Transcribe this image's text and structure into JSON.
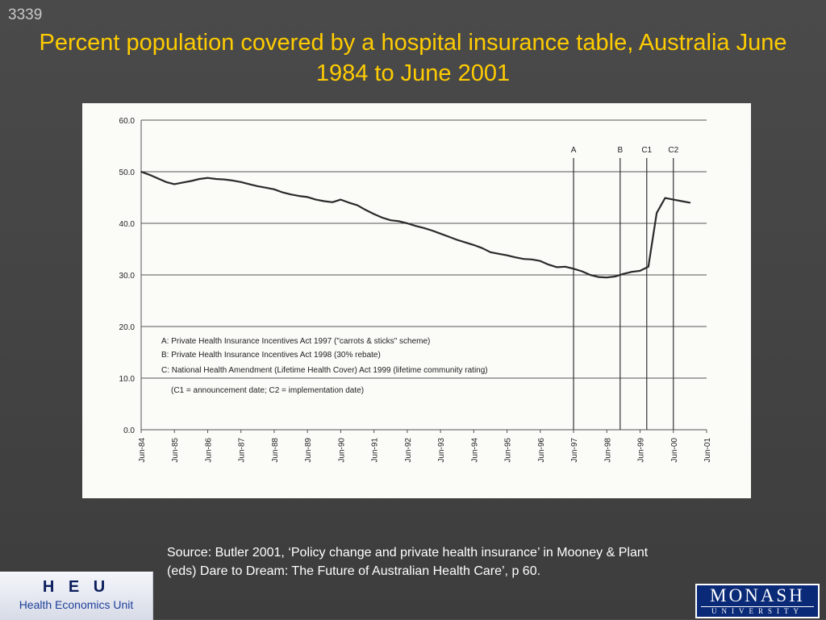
{
  "slide": {
    "number": "3339",
    "title": "Percent population covered by a hospital insurance table, Australia June 1984 to June 2001",
    "source": "Source: Butler 2001, ‘Policy change and private health insurance’ in Mooney & Plant (eds) Dare to Dream: The Future of Australian Health Care’, p 60.",
    "heu": {
      "abbr": "H E U",
      "full": "Health Economics Unit"
    },
    "monash": {
      "name": "MONASH",
      "sub": "UNIVERSITY"
    }
  },
  "chart_data": {
    "type": "line",
    "title": "",
    "xlabel": "",
    "ylabel": "",
    "ylim": [
      0,
      60
    ],
    "yticks": [
      "0.0",
      "10.0",
      "20.0",
      "30.0",
      "40.0",
      "50.0",
      "60.0"
    ],
    "grid": true,
    "categories": [
      "Jun-84",
      "Jun-85",
      "Jun-86",
      "Jun-87",
      "Jun-88",
      "Jun-89",
      "Jun-90",
      "Jun-91",
      "Jun-92",
      "Jun-93",
      "Jun-94",
      "Jun-95",
      "Jun-96",
      "Jun-97",
      "Jun-98",
      "Jun-99",
      "Jun-00",
      "Jun-01"
    ],
    "series": [
      {
        "x": [
          1984.5,
          1984.75,
          1985,
          1985.25,
          1985.5,
          1985.75,
          1986,
          1986.25,
          1986.5,
          1986.75,
          1987,
          1987.25,
          1987.5,
          1987.75,
          1988,
          1988.25,
          1988.5,
          1988.75,
          1989,
          1989.25,
          1989.5,
          1989.75,
          1990,
          1990.25,
          1990.5,
          1990.75,
          1991,
          1991.25,
          1991.5,
          1991.75,
          1992,
          1992.25,
          1992.5,
          1992.75,
          1993,
          1993.25,
          1993.5,
          1993.75,
          1994,
          1994.25,
          1994.5,
          1994.75,
          1995,
          1995.25,
          1995.5,
          1995.75,
          1996,
          1996.25,
          1996.5,
          1996.75,
          1997,
          1997.25,
          1997.5,
          1997.75,
          1998,
          1998.25,
          1998.5,
          1998.75,
          1999,
          1999.25,
          1999.5,
          1999.75,
          2000,
          2000.25,
          2000.5,
          2000.75,
          2001
        ],
        "values": [
          50.0,
          49.4,
          48.7,
          48.0,
          47.6,
          47.9,
          48.2,
          48.6,
          48.8,
          48.6,
          48.5,
          48.3,
          48.0,
          47.6,
          47.2,
          46.9,
          46.6,
          46.0,
          45.6,
          45.3,
          45.1,
          44.6,
          44.3,
          44.1,
          44.6,
          44.0,
          43.5,
          42.6,
          41.8,
          41.1,
          40.6,
          40.4,
          40.0,
          39.5,
          39.1,
          38.6,
          38.0,
          37.4,
          36.8,
          36.3,
          35.8,
          35.2,
          34.4,
          34.1,
          33.8,
          33.4,
          33.1,
          33.0,
          32.7,
          32.0,
          31.5,
          31.6,
          31.2,
          30.7,
          30.0,
          29.6,
          29.5,
          29.7,
          30.2,
          30.6,
          30.8,
          31.6,
          42.0,
          44.9,
          44.6,
          44.3,
          44.0
        ]
      }
    ],
    "markers": [
      {
        "label": "A",
        "x": 1997.5
      },
      {
        "label": "B",
        "x": 1998.9
      },
      {
        "label": "C1",
        "x": 1999.7
      },
      {
        "label": "C2",
        "x": 2000.5
      }
    ],
    "annotations": [
      "A:  Private Health Insurance Incentives Act 1997 (\"carrots & sticks\" scheme)",
      "B:  Private Health Insurance Incentives Act 1998 (30% rebate)",
      "C:  National Health Amendment (Lifetime Health Cover) Act 1999 (lifetime community rating)",
      "(C1 = announcement date;  C2 = implementation date)"
    ]
  }
}
